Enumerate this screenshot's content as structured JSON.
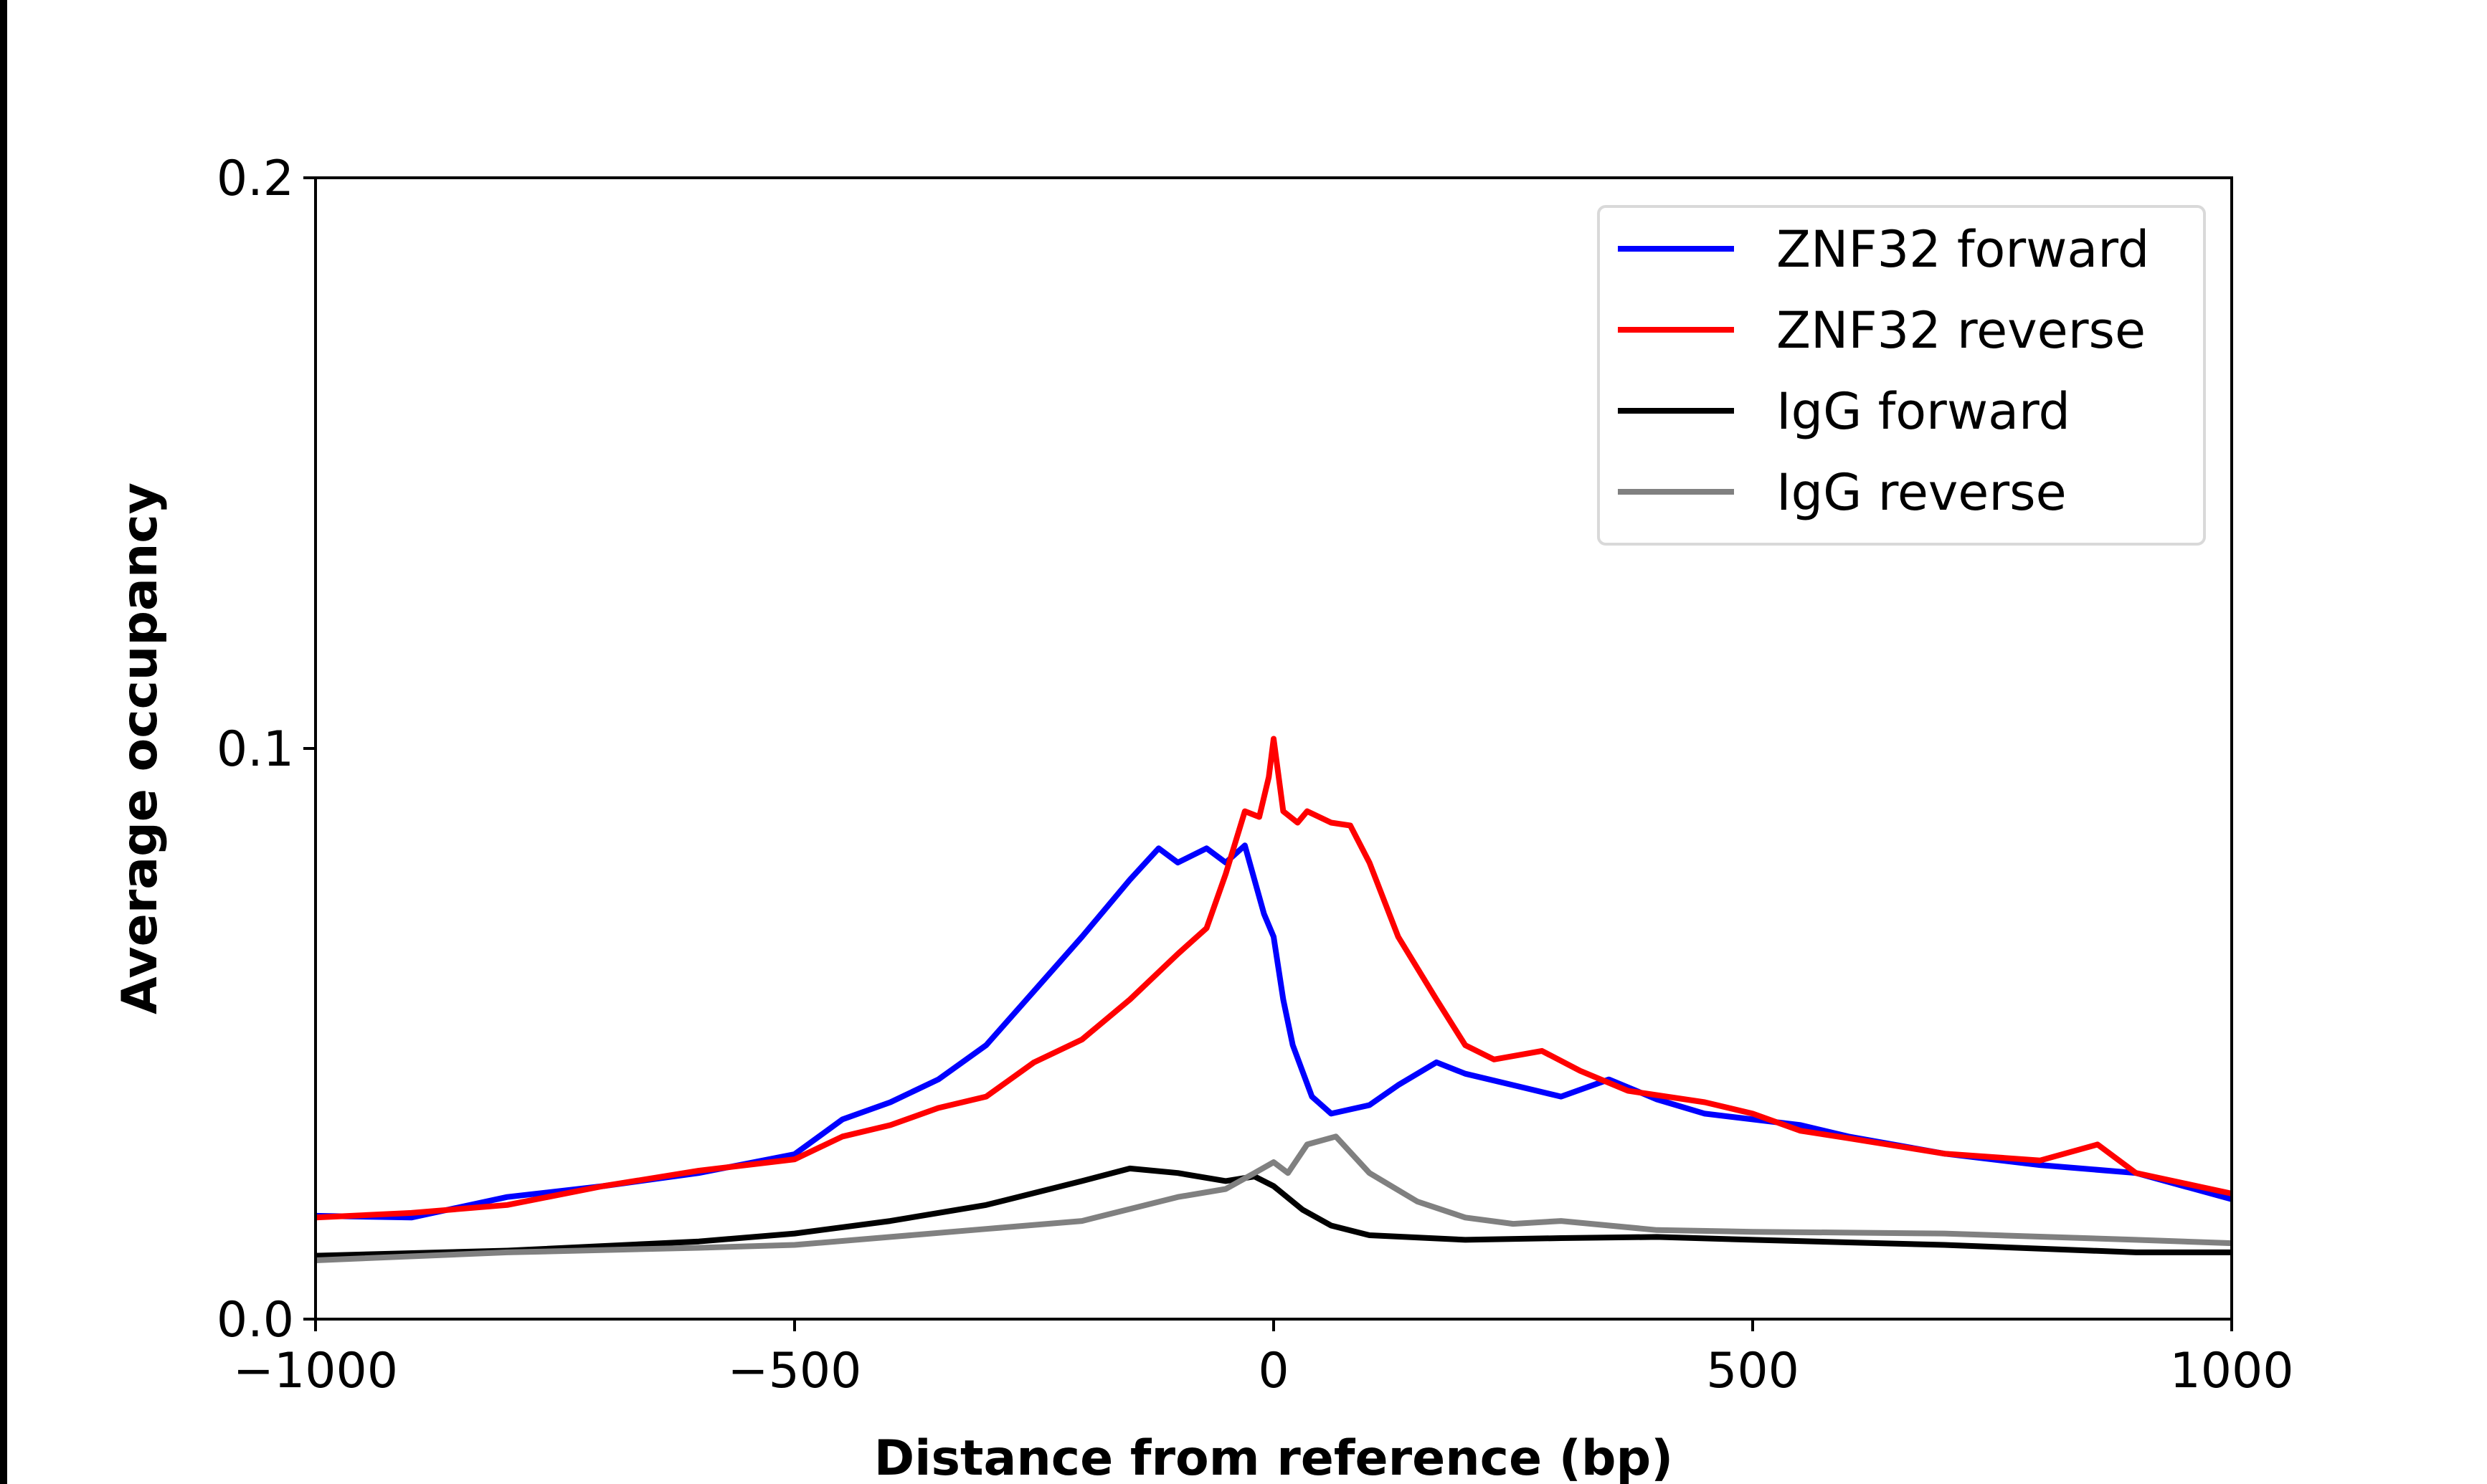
{
  "chart_data": {
    "type": "line",
    "title": "",
    "xlabel": "Distance from reference (bp)",
    "ylabel": "Average occupancy",
    "xlim": [
      -1000,
      1000
    ],
    "ylim": [
      0.0,
      0.2
    ],
    "xticks": [
      -1000,
      -500,
      0,
      500,
      1000
    ],
    "xtick_labels": [
      "−1000",
      "−500",
      "0",
      "500",
      "1000"
    ],
    "yticks": [
      0.0,
      0.1,
      0.2
    ],
    "ytick_labels": [
      "0.0",
      "0.1",
      "0.2"
    ],
    "grid": false,
    "legend_position": "top-right",
    "series": [
      {
        "name": "ZNF32 forward",
        "color": "#0000ff",
        "x": [
          -1000,
          -900,
          -800,
          -700,
          -600,
          -500,
          -450,
          -400,
          -350,
          -300,
          -250,
          -200,
          -150,
          -120,
          -100,
          -70,
          -50,
          -30,
          -10,
          0,
          10,
          20,
          40,
          60,
          100,
          130,
          170,
          200,
          250,
          300,
          350,
          400,
          450,
          500,
          550,
          600,
          700,
          800,
          900,
          1000
        ],
        "y": [
          0.0181,
          0.0178,
          0.0214,
          0.0233,
          0.0256,
          0.0289,
          0.035,
          0.038,
          0.042,
          0.048,
          0.0575,
          0.067,
          0.077,
          0.0825,
          0.08,
          0.0825,
          0.08,
          0.083,
          0.071,
          0.067,
          0.056,
          0.048,
          0.039,
          0.036,
          0.0375,
          0.041,
          0.045,
          0.043,
          0.041,
          0.039,
          0.042,
          0.0385,
          0.036,
          0.035,
          0.034,
          0.032,
          0.029,
          0.027,
          0.0256,
          0.021
        ]
      },
      {
        "name": "ZNF32 reverse",
        "color": "#ff0000",
        "x": [
          -1000,
          -900,
          -800,
          -700,
          -600,
          -500,
          -450,
          -400,
          -350,
          -300,
          -250,
          -200,
          -150,
          -100,
          -70,
          -50,
          -30,
          -15,
          -5,
          0,
          10,
          25,
          35,
          60,
          80,
          100,
          130,
          170,
          200,
          230,
          280,
          320,
          370,
          450,
          500,
          550,
          600,
          700,
          800,
          860,
          900,
          1000
        ],
        "y": [
          0.0178,
          0.0186,
          0.02,
          0.0233,
          0.026,
          0.028,
          0.032,
          0.034,
          0.037,
          0.039,
          0.045,
          0.049,
          0.056,
          0.064,
          0.0685,
          0.078,
          0.089,
          0.088,
          0.095,
          0.1017,
          0.089,
          0.087,
          0.089,
          0.087,
          0.0865,
          0.08,
          0.067,
          0.056,
          0.048,
          0.0455,
          0.047,
          0.0435,
          0.04,
          0.038,
          0.036,
          0.033,
          0.0317,
          0.029,
          0.0278,
          0.0306,
          0.0256,
          0.022
        ]
      },
      {
        "name": "IgG forward",
        "color": "#000000",
        "x": [
          -1000,
          -800,
          -600,
          -500,
          -400,
          -300,
          -200,
          -150,
          -100,
          -50,
          -20,
          0,
          30,
          60,
          100,
          200,
          300,
          400,
          500,
          700,
          900,
          1000
        ],
        "y": [
          0.0111,
          0.012,
          0.0136,
          0.015,
          0.0172,
          0.02,
          0.0242,
          0.0264,
          0.0256,
          0.0242,
          0.025,
          0.0233,
          0.0192,
          0.0164,
          0.0147,
          0.0139,
          0.0142,
          0.0144,
          0.0139,
          0.013,
          0.0117,
          0.0117
        ]
      },
      {
        "name": "IgG reverse",
        "color": "#808080",
        "x": [
          -1000,
          -800,
          -600,
          -500,
          -400,
          -300,
          -200,
          -100,
          -50,
          -20,
          0,
          15,
          35,
          65,
          100,
          150,
          200,
          250,
          300,
          400,
          500,
          700,
          900,
          1000
        ],
        "y": [
          0.0103,
          0.0117,
          0.0125,
          0.013,
          0.0144,
          0.0158,
          0.0172,
          0.0214,
          0.0228,
          0.0256,
          0.0275,
          0.0256,
          0.0306,
          0.032,
          0.0256,
          0.0206,
          0.0178,
          0.0167,
          0.0172,
          0.0156,
          0.0153,
          0.015,
          0.0139,
          0.0133
        ]
      }
    ]
  }
}
